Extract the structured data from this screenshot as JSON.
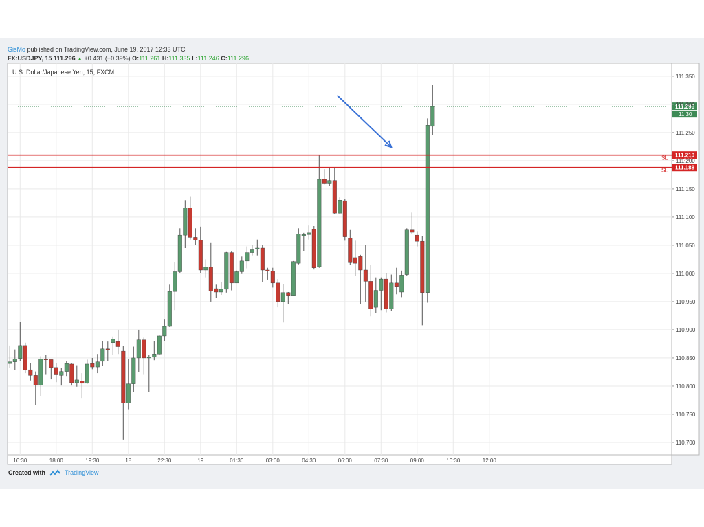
{
  "header": {
    "author": "GisMo",
    "published": " published on TradingView.com, June 19, 2017 12:33 UTC",
    "symbol": "FX:USDJPY, 15",
    "price": "111.296",
    "change": "+0.431 (+0.39%)",
    "o_label": "O:",
    "o_val": "111.261",
    "h_label": "H:",
    "h_val": "111.335",
    "l_label": "L:",
    "l_val": "111.246",
    "c_label": "C:",
    "c_val": "111.296"
  },
  "footer": {
    "created_with": "Created with",
    "brand": "TradingView"
  },
  "colors": {
    "up": "#5a9b6f",
    "down": "#c63a31",
    "line_red": "#d42525",
    "arrow": "#3a72d6",
    "last": "#3d8a55",
    "grid": "#e9e9e9"
  },
  "chart_data": {
    "type": "candlestick",
    "title": "U.S. Dollar/Japanese Yen, 15, FXCM",
    "ylim": [
      110.678,
      111.373
    ],
    "y_ticks": [
      "111.350",
      "111.300",
      "111.250",
      "111.200",
      "111.150",
      "111.100",
      "111.050",
      "111.000",
      "110.950",
      "110.900",
      "110.850",
      "110.800",
      "110.750",
      "110.700"
    ],
    "x_tick_labels": [
      {
        "i": 2,
        "label": "16:30"
      },
      {
        "i": 9,
        "label": "18:00"
      },
      {
        "i": 16,
        "label": "19:30"
      },
      {
        "i": 23,
        "label": "18"
      },
      {
        "i": 30,
        "label": "22:30"
      },
      {
        "i": 37,
        "label": "19"
      },
      {
        "i": 44,
        "label": "01:30"
      },
      {
        "i": 51,
        "label": "03:00"
      },
      {
        "i": 58,
        "label": "04:30"
      },
      {
        "i": 65,
        "label": "06:00"
      },
      {
        "i": 72,
        "label": "07:30"
      },
      {
        "i": 79,
        "label": "09:00"
      },
      {
        "i": 86,
        "label": "10:30"
      },
      {
        "i": 93,
        "label": "12:00"
      }
    ],
    "candles": [
      [
        110.84,
        110.843,
        110.872,
        110.832
      ],
      [
        110.843,
        110.848,
        110.865,
        110.828
      ],
      [
        110.849,
        110.872,
        110.914,
        110.845
      ],
      [
        110.872,
        110.829,
        110.877,
        110.823
      ],
      [
        110.829,
        110.819,
        110.841,
        110.81
      ],
      [
        110.819,
        110.802,
        110.826,
        110.766
      ],
      [
        110.802,
        110.848,
        110.853,
        110.782
      ],
      [
        110.848,
        110.847,
        110.856,
        110.82
      ],
      [
        110.847,
        110.833,
        110.847,
        110.812
      ],
      [
        110.833,
        110.82,
        110.841,
        110.807
      ],
      [
        110.819,
        110.826,
        110.832,
        110.801
      ],
      [
        110.826,
        110.84,
        110.845,
        110.818
      ],
      [
        110.839,
        110.806,
        110.84,
        110.801
      ],
      [
        110.806,
        110.811,
        110.837,
        110.799
      ],
      [
        110.809,
        110.805,
        110.823,
        110.779
      ],
      [
        110.805,
        110.839,
        110.847,
        110.804
      ],
      [
        110.84,
        110.834,
        110.85,
        110.83
      ],
      [
        110.834,
        110.843,
        110.857,
        110.823
      ],
      [
        110.844,
        110.866,
        110.88,
        110.836
      ],
      [
        110.866,
        110.865,
        110.879,
        110.844
      ],
      [
        110.877,
        110.883,
        110.888,
        110.856
      ],
      [
        110.879,
        110.87,
        110.9,
        110.857
      ],
      [
        110.862,
        110.77,
        110.871,
        110.705
      ],
      [
        110.77,
        110.804,
        110.848,
        110.759
      ],
      [
        110.804,
        110.85,
        110.87,
        110.79
      ],
      [
        110.85,
        110.882,
        110.9,
        110.825
      ],
      [
        110.882,
        110.85,
        110.886,
        110.82
      ],
      [
        110.85,
        110.852,
        110.855,
        110.79
      ],
      [
        110.852,
        110.857,
        110.88,
        110.846
      ],
      [
        110.857,
        110.889,
        110.89,
        110.856
      ],
      [
        110.889,
        110.906,
        110.918,
        110.88
      ],
      [
        110.906,
        110.968,
        110.98,
        110.905
      ],
      [
        110.968,
        111.003,
        111.02,
        110.935
      ],
      [
        111.003,
        111.068,
        111.08,
        111.0
      ],
      [
        111.068,
        111.116,
        111.13,
        111.045
      ],
      [
        111.116,
        111.064,
        111.137,
        111.06
      ],
      [
        111.064,
        111.059,
        111.08,
        111.05
      ],
      [
        111.059,
        111.006,
        111.083,
        111.0
      ],
      [
        111.006,
        111.011,
        111.025,
        110.993
      ],
      [
        111.011,
        110.969,
        111.055,
        110.95
      ],
      [
        110.973,
        110.967,
        110.98,
        110.957
      ],
      [
        110.967,
        110.972,
        110.985,
        110.962
      ],
      [
        110.972,
        111.037,
        111.038,
        110.966
      ],
      [
        111.037,
        110.983,
        111.04,
        110.97
      ],
      [
        110.983,
        111.003,
        111.005,
        110.983
      ],
      [
        111.003,
        111.022,
        111.03,
        110.999
      ],
      [
        111.022,
        111.037,
        111.048,
        111.009
      ],
      [
        111.037,
        111.042,
        111.05,
        111.032
      ],
      [
        111.044,
        111.045,
        111.06,
        111.032
      ],
      [
        111.045,
        111.006,
        111.051,
        110.985
      ],
      [
        111.006,
        111.004,
        111.01,
        110.989
      ],
      [
        111.004,
        110.983,
        111.01,
        110.975
      ],
      [
        110.983,
        110.95,
        110.99,
        110.94
      ],
      [
        110.95,
        110.966,
        110.981,
        110.913
      ],
      [
        110.966,
        110.96,
        110.967,
        110.945
      ],
      [
        110.96,
        111.021,
        111.022,
        110.96
      ],
      [
        111.018,
        111.07,
        111.08,
        111.016
      ],
      [
        111.067,
        111.069,
        111.072,
        111.04
      ],
      [
        111.069,
        111.072,
        111.085,
        111.06
      ],
      [
        111.078,
        111.01,
        111.084,
        111.007
      ],
      [
        111.012,
        111.167,
        111.21,
        111.01
      ],
      [
        111.167,
        111.159,
        111.185,
        111.158
      ],
      [
        111.159,
        111.165,
        111.187,
        111.155
      ],
      [
        111.165,
        111.107,
        111.188,
        111.106
      ],
      [
        111.107,
        111.13,
        111.135,
        111.106
      ],
      [
        111.129,
        111.065,
        111.132,
        111.058
      ],
      [
        111.063,
        111.019,
        111.077,
        111.015
      ],
      [
        111.028,
        111.018,
        111.058,
        110.995
      ],
      [
        111.03,
        111.006,
        111.033,
        110.946
      ],
      [
        111.006,
        110.986,
        111.05,
        110.95
      ],
      [
        110.986,
        110.937,
        111.015,
        110.924
      ],
      [
        110.94,
        110.97,
        110.993,
        110.93
      ],
      [
        110.97,
        110.99,
        110.993,
        110.935
      ],
      [
        110.99,
        110.937,
        111.0,
        110.931
      ],
      [
        110.937,
        110.983,
        110.998,
        110.934
      ],
      [
        110.983,
        110.977,
        111.01,
        110.963
      ],
      [
        110.967,
        110.997,
        111.005,
        110.958
      ],
      [
        110.998,
        111.077,
        111.08,
        110.995
      ],
      [
        111.077,
        111.073,
        111.108,
        111.07
      ],
      [
        111.068,
        111.057,
        111.075,
        111.048
      ],
      [
        111.057,
        110.966,
        111.066,
        110.908
      ],
      [
        110.966,
        111.263,
        111.275,
        110.948
      ],
      [
        111.261,
        111.296,
        111.335,
        111.246
      ]
    ],
    "lines": [
      {
        "price": 111.21,
        "label": "111.210",
        "tag": "SL",
        "sub": "111.208"
      },
      {
        "price": 111.188,
        "label": "111.188",
        "tag": "SL"
      }
    ],
    "last_price": {
      "price": 111.296,
      "label": "111.296",
      "countdown": "11:30"
    },
    "arrow": {
      "from": [
        63.5,
        111.316
      ],
      "to": [
        74.0,
        111.224
      ]
    }
  }
}
